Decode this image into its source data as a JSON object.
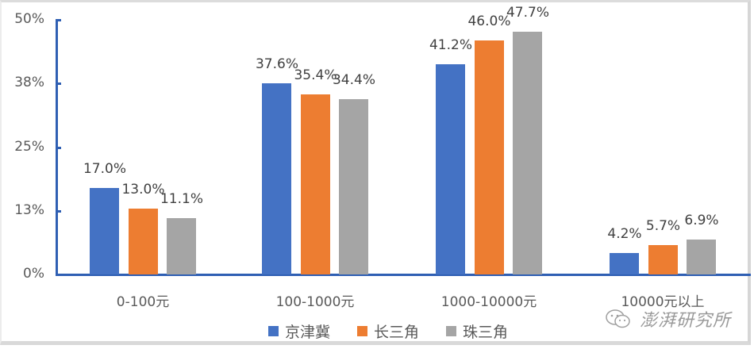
{
  "chart_data": {
    "type": "bar",
    "title": "",
    "xlabel": "",
    "ylabel": "",
    "categories": [
      "0-100元",
      "100-1000元",
      "1000-10000元",
      "10000元以上"
    ],
    "series": [
      {
        "name": "京津冀",
        "color": "#4472c4",
        "values": [
          17.0,
          37.6,
          41.2,
          4.2
        ],
        "labels": [
          "17.0%",
          "37.6%",
          "41.2%",
          "4.2%"
        ]
      },
      {
        "name": "长三角",
        "color": "#ed7d31",
        "values": [
          13.0,
          35.4,
          46.0,
          5.7
        ],
        "labels": [
          "13.0%",
          "35.4%",
          "46.0%",
          "5.7%"
        ]
      },
      {
        "name": "珠三角",
        "color": "#a5a5a5",
        "values": [
          11.1,
          34.4,
          47.7,
          6.9
        ],
        "labels": [
          "11.1%",
          "34.4%",
          "47.7%",
          "6.9%"
        ]
      }
    ],
    "yticks": [
      "0%",
      "13%",
      "25%",
      "38%",
      "50%"
    ],
    "ylim": [
      0,
      50
    ],
    "grid": false,
    "legend_position": "bottom"
  },
  "watermark": {
    "text": "澎湃研究所",
    "icon": "wechat-icon"
  }
}
